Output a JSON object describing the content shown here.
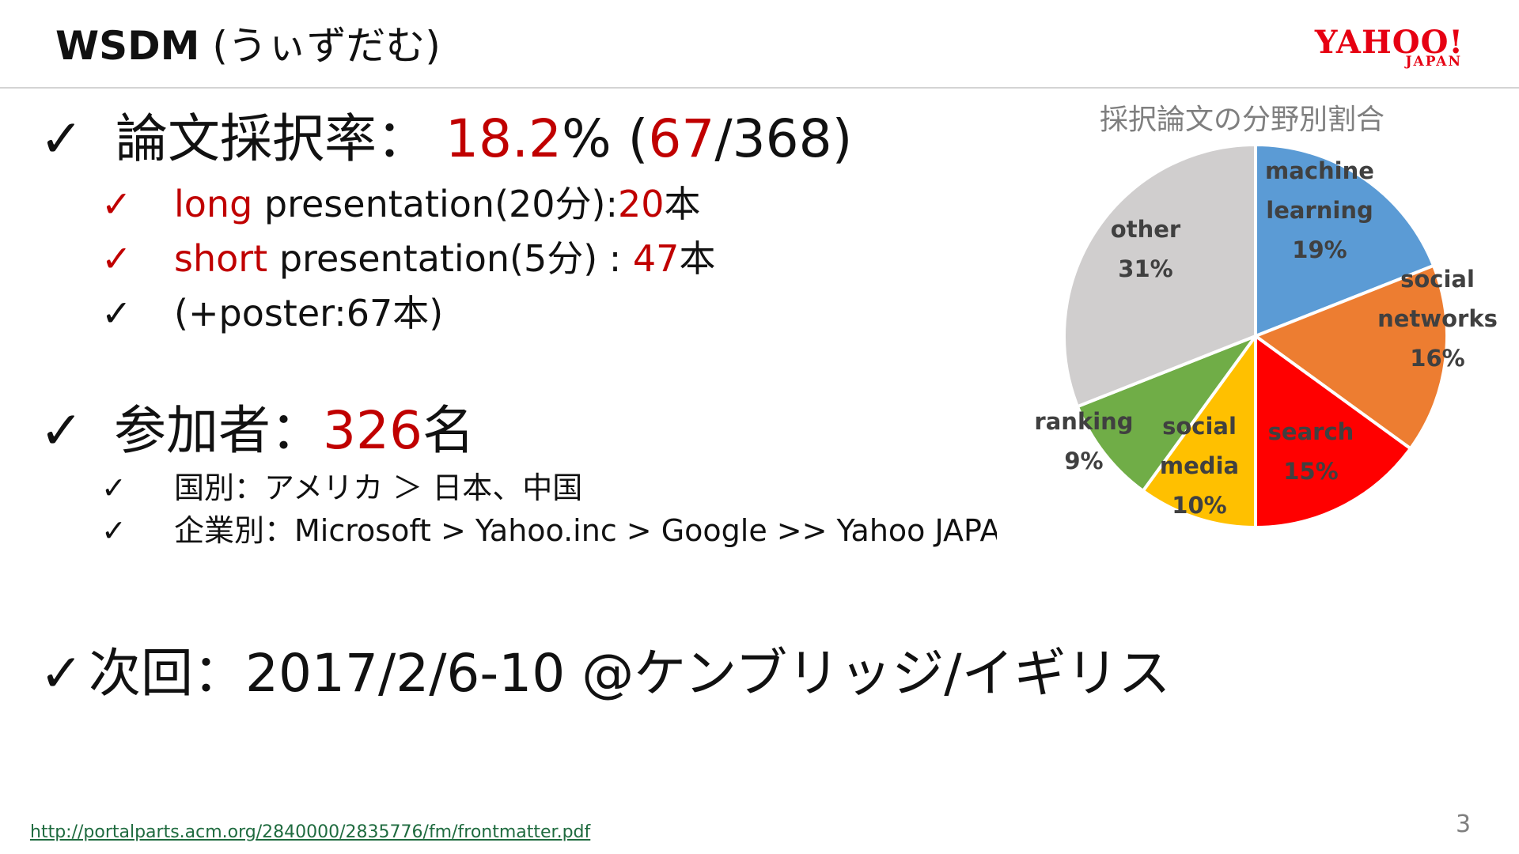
{
  "header": {
    "title_main": "WSDM",
    "title_sub": "(うぃずだむ)"
  },
  "logo": {
    "word": "YAHOO!",
    "sub": "JAPAN"
  },
  "check_mark": "✓",
  "acceptance": {
    "label": "論文採択率：",
    "rate": "18.2",
    "rate_suffix": "% (",
    "accepted": "67",
    "total_part": "/368)",
    "long": {
      "red": "long",
      "text": " presentation(20分):",
      "count": "20",
      "unit": "本"
    },
    "short": {
      "red": "short",
      "text": " presentation(5分) : ",
      "count": "47",
      "unit": "本"
    },
    "poster": "(+poster:67本)"
  },
  "participants": {
    "label": "参加者：",
    "count": "326",
    "unit": "名",
    "by_country": "国別：アメリカ ＞ 日本、中国",
    "by_company": "企業別：Microsoft > Yahoo.inc > Google >> Yahoo JAPAN"
  },
  "next": {
    "text": "次回：2017/2/6-10 @ケンブリッジ/イギリス"
  },
  "footer": {
    "link": "http://portalparts.acm.org/2840000/2835776/fm/frontmatter.pdf",
    "page": "3"
  },
  "chart_data": {
    "type": "pie",
    "title": "採択論文の分野別割合",
    "slices": [
      {
        "label": "machine learning",
        "value": 19,
        "color": "#5b9bd5"
      },
      {
        "label": "social networks",
        "value": 16,
        "color": "#ed7d31"
      },
      {
        "label": "search",
        "value": 15,
        "color": "#ff0000"
      },
      {
        "label": "social media",
        "value": 10,
        "color": "#ffc000"
      },
      {
        "label": "ranking",
        "value": 9,
        "color": "#70ad47"
      },
      {
        "label": "other",
        "value": 31,
        "color": "#d0cece"
      }
    ]
  }
}
